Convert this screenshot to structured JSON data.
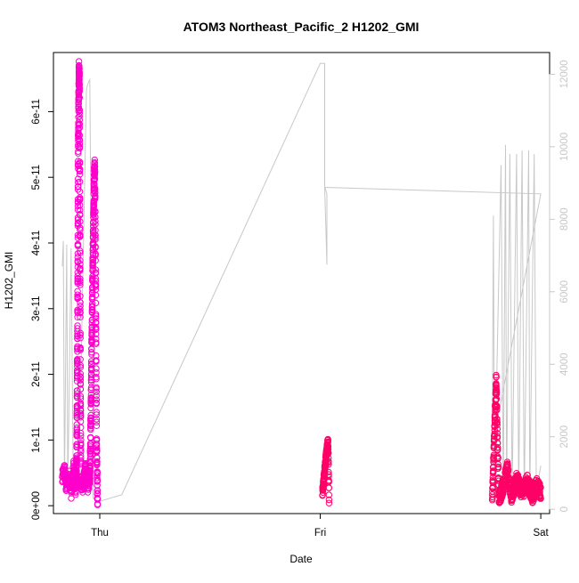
{
  "chart_data": {
    "type": "scatter",
    "title": "ATOM3 Northeast_Pacific_2 H1202_GMI",
    "xlabel": "Date",
    "ylabel": "H1202_GMI",
    "x_ticks": [
      "Thu",
      "Fri",
      "Sat"
    ],
    "x_tick_days": [
      0,
      1,
      2
    ],
    "xlim_days": [
      -0.21,
      2.04
    ],
    "ylim": [
      -1.2e-12,
      6.9e-11
    ],
    "y_ticks": [
      0,
      1e-11,
      2e-11,
      3e-11,
      4e-11,
      5e-11,
      6e-11
    ],
    "y_tick_labels": [
      "0e+00",
      "1e-11",
      "2e-11",
      "3e-11",
      "4e-11",
      "5e-11",
      "6e-11"
    ],
    "y2lim": [
      -120,
      12600
    ],
    "y2_ticks": [
      0,
      2000,
      4000,
      6000,
      8000,
      10000,
      12000
    ],
    "y2_tick_labels": [
      "0",
      "2000",
      "4000",
      "6000",
      "8000",
      "10000",
      "12000"
    ],
    "marker": "open-circle",
    "grid": false,
    "legend": "none",
    "colors": {
      "marker_high": "#ff00cc",
      "marker_low": "#ff0066",
      "altitude_line": "#c8c8c8",
      "axis": "#000000",
      "right_axis": "#c8c8c8"
    },
    "series": [
      {
        "role": "points",
        "segments": [
          {
            "day_range": [
              -0.17,
              -0.11
            ],
            "profile": [
              [
                0,
                4e-12
              ],
              [
                0.15,
                5.5e-12
              ],
              [
                0.3,
                3e-12
              ],
              [
                0.5,
                4.5e-12
              ],
              [
                0.7,
                2e-12
              ],
              [
                0.85,
                5.8e-12
              ],
              [
                1,
                3.5e-12
              ]
            ],
            "noise": 1.2e-12,
            "count": 110
          },
          {
            "day_range": [
              -0.11,
              -0.085
            ],
            "profile": [
              [
                0,
                3e-12
              ],
              [
                0.2,
                6e-12
              ],
              [
                0.35,
                2.5e-11
              ],
              [
                0.5,
                5.5e-11
              ],
              [
                0.62,
                6.62e-11
              ],
              [
                0.72,
                6.5e-11
              ],
              [
                0.8,
                4.5e-11
              ],
              [
                0.9,
                2e-11
              ],
              [
                1,
                4e-12
              ]
            ],
            "noise": 1.5e-12,
            "count": 380
          },
          {
            "day_range": [
              -0.085,
              -0.045
            ],
            "profile": [
              [
                0,
                4e-12
              ],
              [
                0.2,
                3e-12
              ],
              [
                0.5,
                5.5e-12
              ],
              [
                0.8,
                3e-12
              ],
              [
                1,
                5e-12
              ]
            ],
            "noise": 1.2e-12,
            "count": 120
          },
          {
            "day_range": [
              -0.045,
              -0.01
            ],
            "profile": [
              [
                0,
                3e-12
              ],
              [
                0.15,
                1.5e-11
              ],
              [
                0.35,
                3.5e-11
              ],
              [
                0.55,
                5e-11
              ],
              [
                0.65,
                5.15e-11
              ],
              [
                0.75,
                3.5e-11
              ],
              [
                0.88,
                1e-11
              ],
              [
                1,
                5e-13
              ]
            ],
            "noise": 1.5e-12,
            "count": 340
          },
          {
            "day_range": [
              1.01,
              1.04
            ],
            "profile": [
              [
                0,
                2e-12
              ],
              [
                0.3,
                5e-12
              ],
              [
                0.6,
                8e-12
              ],
              [
                0.85,
                9.8e-12
              ],
              [
                1,
                1e-12
              ]
            ],
            "noise": 8e-13,
            "count": 140
          },
          {
            "day_range": [
              1.78,
              1.81
            ],
            "profile": [
              [
                0,
                1e-12
              ],
              [
                0.35,
                1.2e-11
              ],
              [
                0.6,
                1.93e-11
              ],
              [
                0.8,
                9e-12
              ],
              [
                1,
                1.5e-12
              ]
            ],
            "noise": 1e-12,
            "count": 130
          },
          {
            "day_range": [
              1.81,
              2.0
            ],
            "profile": [
              [
                0,
                1e-12
              ],
              [
                0.1,
                3e-12
              ],
              [
                0.2,
                5.5e-12
              ],
              [
                0.3,
                1.5e-12
              ],
              [
                0.42,
                4e-12
              ],
              [
                0.55,
                2e-12
              ],
              [
                0.68,
                3.6e-12
              ],
              [
                0.8,
                1.5e-12
              ],
              [
                0.9,
                3e-12
              ],
              [
                1,
                2e-12
              ]
            ],
            "noise": 1.2e-12,
            "count": 420
          }
        ]
      },
      {
        "role": "altitude-line",
        "axis": "right",
        "points": [
          [
            -0.17,
            6700
          ],
          [
            -0.165,
            7400
          ],
          [
            -0.16,
            600
          ],
          [
            -0.15,
            7300
          ],
          [
            -0.145,
            500
          ],
          [
            -0.13,
            7200
          ],
          [
            -0.12,
            700
          ],
          [
            -0.095,
            800
          ],
          [
            -0.06,
            11600
          ],
          [
            -0.05,
            11800
          ],
          [
            -0.045,
            11850
          ],
          [
            -0.03,
            300
          ],
          [
            0.0,
            220
          ],
          [
            0.1,
            400
          ],
          [
            1.0,
            12300
          ],
          [
            1.02,
            12300
          ],
          [
            1.02,
            8900
          ],
          [
            1.03,
            8700
          ],
          [
            1.03,
            6750
          ],
          [
            1.02,
            8880
          ],
          [
            2.0,
            8700
          ],
          [
            1.78,
            1700
          ],
          [
            1.785,
            8100
          ],
          [
            1.79,
            500
          ],
          [
            1.82,
            9500
          ],
          [
            1.83,
            300
          ],
          [
            1.84,
            10050
          ],
          [
            1.845,
            400
          ],
          [
            1.86,
            9800
          ],
          [
            1.87,
            300
          ],
          [
            1.89,
            9800
          ],
          [
            1.9,
            400
          ],
          [
            1.915,
            9900
          ],
          [
            1.925,
            300
          ],
          [
            1.945,
            9900
          ],
          [
            1.95,
            300
          ],
          [
            1.97,
            9800
          ],
          [
            1.98,
            500
          ],
          [
            2.0,
            1200
          ]
        ]
      }
    ]
  }
}
